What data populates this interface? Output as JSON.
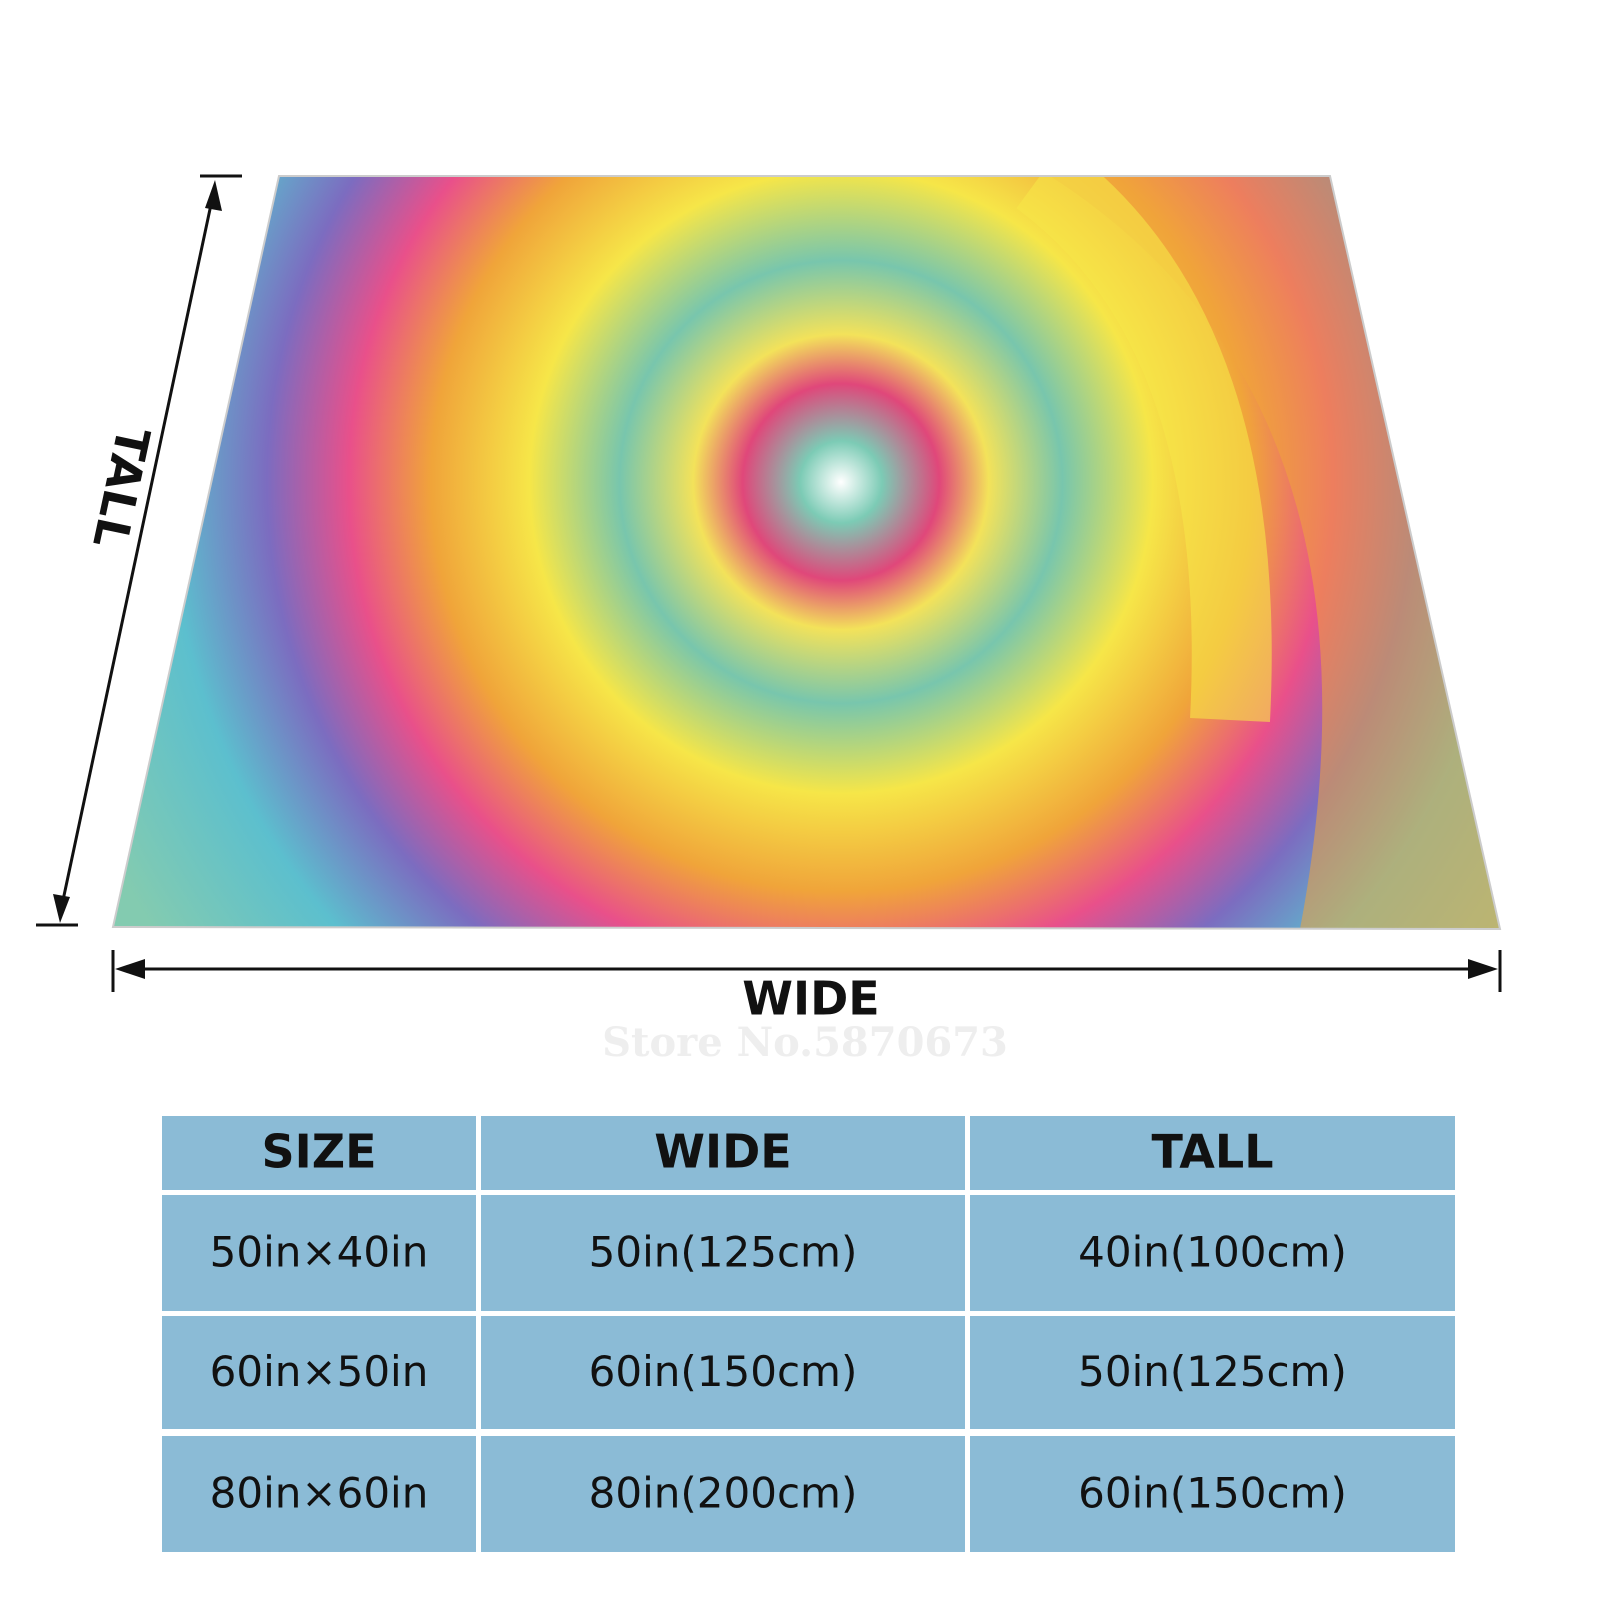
{
  "dimension_labels": {
    "tall": "TALL",
    "wide": "WIDE"
  },
  "watermark": "Store No.5870673",
  "table": {
    "header": [
      "SIZE",
      "WIDE",
      "TALL"
    ],
    "rows": [
      [
        "50in×40in",
        "50in(125cm)",
        "40in(100cm)"
      ],
      [
        "60in×50in",
        "60in(150cm)",
        "50in(125cm)"
      ],
      [
        "80in×60in",
        "80in(200cm)",
        "60in(150cm)"
      ]
    ]
  }
}
